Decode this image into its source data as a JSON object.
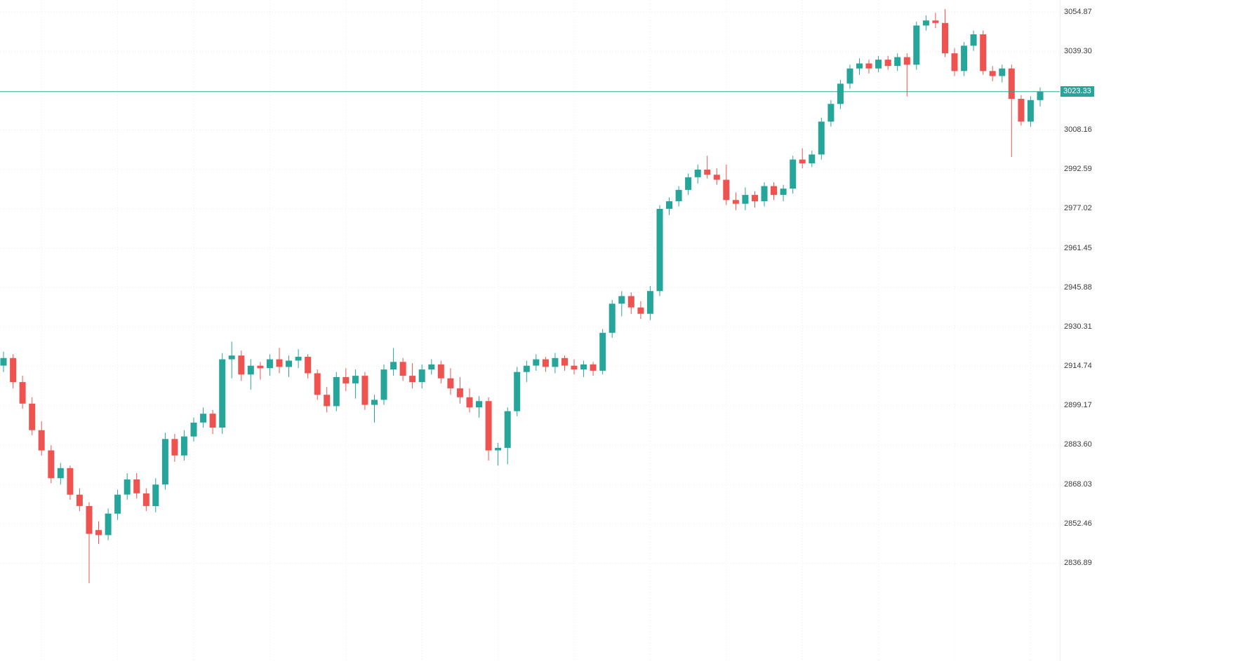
{
  "chart_data": {
    "type": "candlestick",
    "title": "",
    "grid": true,
    "legend": "none",
    "colors": {
      "up": "#26a69a",
      "down": "#ef5350",
      "price_line": "#26a69a",
      "badge_bg": "#26a69a",
      "badge_text": "#ffffff",
      "axis_text": "#3b3b3b",
      "grid_line": "#d9d9d9",
      "background": "#ffffff"
    },
    "price_axis": {
      "side": "right",
      "step": 15.57,
      "labels": [
        "3054.87",
        "3039.30",
        "3008.16",
        "2992.59",
        "2977.02",
        "2961.45",
        "2945.88",
        "2930.31",
        "2914.74",
        "2899.17",
        "2883.60",
        "2868.03",
        "2852.46",
        "2836.89"
      ]
    },
    "current_price": 3023.33,
    "current_price_label": "3023.33",
    "candles": [
      [
        2915.0,
        2920.5,
        2912.5,
        2918.0
      ],
      [
        2918.0,
        2919.5,
        2906.0,
        2908.5
      ],
      [
        2908.5,
        2911.0,
        2898.0,
        2900.0
      ],
      [
        2900.0,
        2902.5,
        2887.5,
        2889.5
      ],
      [
        2889.5,
        2893.0,
        2879.5,
        2881.5
      ],
      [
        2881.5,
        2883.5,
        2868.5,
        2870.5
      ],
      [
        2870.5,
        2876.5,
        2868.0,
        2874.5
      ],
      [
        2874.5,
        2875.5,
        2862.0,
        2864.0
      ],
      [
        2864.0,
        2866.5,
        2857.5,
        2859.5
      ],
      [
        2859.5,
        2861.0,
        2829.0,
        2848.5
      ],
      [
        2850.0,
        2853.5,
        2844.5,
        2848.0
      ],
      [
        2848.0,
        2858.5,
        2846.0,
        2856.5
      ],
      [
        2856.5,
        2866.0,
        2854.0,
        2864.0
      ],
      [
        2864.0,
        2872.5,
        2862.0,
        2870.0
      ],
      [
        2870.0,
        2872.5,
        2862.5,
        2864.5
      ],
      [
        2864.5,
        2866.5,
        2857.5,
        2859.5
      ],
      [
        2859.5,
        2870.5,
        2857.0,
        2868.0
      ],
      [
        2868.0,
        2888.5,
        2866.0,
        2886.0
      ],
      [
        2886.0,
        2888.0,
        2877.0,
        2879.5
      ],
      [
        2879.5,
        2889.5,
        2877.5,
        2887.0
      ],
      [
        2887.0,
        2894.5,
        2885.0,
        2892.5
      ],
      [
        2892.5,
        2898.5,
        2890.5,
        2896.0
      ],
      [
        2896.0,
        2897.5,
        2888.0,
        2890.5
      ],
      [
        2890.5,
        2920.0,
        2888.0,
        2917.5
      ],
      [
        2917.5,
        2924.5,
        2910.0,
        2919.0
      ],
      [
        2919.0,
        2921.0,
        2909.0,
        2911.5
      ],
      [
        2911.5,
        2917.5,
        2905.5,
        2915.0
      ],
      [
        2915.0,
        2916.5,
        2909.5,
        2914.0
      ],
      [
        2914.0,
        2919.5,
        2911.0,
        2917.5
      ],
      [
        2917.5,
        2922.0,
        2912.0,
        2914.5
      ],
      [
        2914.5,
        2919.0,
        2910.5,
        2917.0
      ],
      [
        2917.0,
        2921.5,
        2914.0,
        2918.5
      ],
      [
        2918.5,
        2919.5,
        2910.0,
        2912.0
      ],
      [
        2912.0,
        2913.5,
        2901.5,
        2903.5
      ],
      [
        2903.5,
        2906.5,
        2896.5,
        2899.0
      ],
      [
        2899.0,
        2912.5,
        2897.0,
        2910.5
      ],
      [
        2910.5,
        2914.0,
        2905.0,
        2908.0
      ],
      [
        2908.0,
        2913.5,
        2902.0,
        2911.0
      ],
      [
        2911.0,
        2912.5,
        2897.5,
        2899.5
      ],
      [
        2899.5,
        2903.5,
        2892.5,
        2901.5
      ],
      [
        2901.5,
        2915.5,
        2899.5,
        2913.5
      ],
      [
        2913.5,
        2922.0,
        2911.0,
        2916.5
      ],
      [
        2916.5,
        2918.0,
        2909.0,
        2911.0
      ],
      [
        2911.0,
        2916.0,
        2906.0,
        2908.5
      ],
      [
        2908.5,
        2915.5,
        2906.0,
        2913.5
      ],
      [
        2913.5,
        2917.5,
        2911.5,
        2915.5
      ],
      [
        2915.5,
        2917.0,
        2908.0,
        2910.0
      ],
      [
        2910.0,
        2914.0,
        2903.5,
        2906.0
      ],
      [
        2906.0,
        2910.5,
        2900.0,
        2902.5
      ],
      [
        2902.5,
        2906.0,
        2896.5,
        2898.5
      ],
      [
        2898.5,
        2903.0,
        2894.5,
        2901.0
      ],
      [
        2901.0,
        2902.5,
        2877.5,
        2881.5
      ],
      [
        2881.5,
        2884.5,
        2875.5,
        2882.5
      ],
      [
        2882.5,
        2898.5,
        2876.0,
        2897.0
      ],
      [
        2897.0,
        2914.5,
        2895.0,
        2912.5
      ],
      [
        2912.5,
        2917.0,
        2908.5,
        2915.0
      ],
      [
        2915.0,
        2919.5,
        2913.0,
        2917.5
      ],
      [
        2917.5,
        2918.5,
        2912.5,
        2914.5
      ],
      [
        2914.5,
        2920.0,
        2912.0,
        2918.0
      ],
      [
        2918.0,
        2919.0,
        2913.0,
        2915.0
      ],
      [
        2915.0,
        2917.5,
        2911.5,
        2913.5
      ],
      [
        2913.5,
        2917.0,
        2910.5,
        2915.5
      ],
      [
        2915.5,
        2916.5,
        2911.0,
        2913.0
      ],
      [
        2913.0,
        2929.5,
        2911.5,
        2928.0
      ],
      [
        2928.0,
        2941.0,
        2926.0,
        2939.5
      ],
      [
        2939.5,
        2944.5,
        2934.5,
        2942.5
      ],
      [
        2942.5,
        2944.0,
        2935.5,
        2938.0
      ],
      [
        2938.0,
        2940.5,
        2933.5,
        2935.5
      ],
      [
        2935.5,
        2946.5,
        2933.0,
        2944.5
      ],
      [
        2944.5,
        2978.5,
        2942.5,
        2977.0
      ],
      [
        2977.0,
        2981.5,
        2974.5,
        2980.0
      ],
      [
        2980.0,
        2986.0,
        2978.0,
        2984.5
      ],
      [
        2984.5,
        2991.0,
        2982.5,
        2989.5
      ],
      [
        2989.5,
        2994.5,
        2987.0,
        2992.5
      ],
      [
        2992.5,
        2998.0,
        2989.0,
        2990.5
      ],
      [
        2990.5,
        2993.0,
        2986.5,
        2988.5
      ],
      [
        2988.5,
        2994.5,
        2978.5,
        2980.5
      ],
      [
        2980.5,
        2983.5,
        2976.5,
        2979.0
      ],
      [
        2979.0,
        2985.5,
        2976.5,
        2982.5
      ],
      [
        2982.5,
        2984.0,
        2977.5,
        2980.0
      ],
      [
        2980.0,
        2987.5,
        2978.0,
        2986.0
      ],
      [
        2986.0,
        2987.5,
        2980.5,
        2982.5
      ],
      [
        2982.5,
        2986.5,
        2980.0,
        2985.0
      ],
      [
        2985.0,
        2998.0,
        2983.0,
        2996.5
      ],
      [
        2996.5,
        3001.0,
        2993.0,
        2995.0
      ],
      [
        2995.0,
        3000.0,
        2993.5,
        2998.5
      ],
      [
        2998.5,
        3013.0,
        2996.5,
        3011.5
      ],
      [
        3011.5,
        3020.0,
        3009.5,
        3018.5
      ],
      [
        3018.5,
        3028.0,
        3016.5,
        3026.5
      ],
      [
        3026.5,
        3034.0,
        3024.5,
        3032.5
      ],
      [
        3032.5,
        3036.5,
        3030.0,
        3034.5
      ],
      [
        3034.5,
        3036.0,
        3030.5,
        3032.5
      ],
      [
        3032.5,
        3037.5,
        3031.0,
        3036.0
      ],
      [
        3036.0,
        3037.5,
        3032.0,
        3033.5
      ],
      [
        3033.5,
        3038.5,
        3031.5,
        3037.0
      ],
      [
        3037.0,
        3038.5,
        3021.5,
        3034.0
      ],
      [
        3034.0,
        3051.0,
        3032.0,
        3049.5
      ],
      [
        3049.5,
        3053.5,
        3047.5,
        3051.5
      ],
      [
        3051.5,
        3054.5,
        3048.5,
        3050.5
      ],
      [
        3050.5,
        3056.0,
        3037.0,
        3038.5
      ],
      [
        3038.5,
        3040.5,
        3029.5,
        3031.5
      ],
      [
        3031.5,
        3043.0,
        3029.5,
        3041.5
      ],
      [
        3041.5,
        3047.5,
        3039.5,
        3046.0
      ],
      [
        3046.0,
        3047.5,
        3030.0,
        3031.5
      ],
      [
        3031.5,
        3033.5,
        3027.5,
        3029.5
      ],
      [
        3029.5,
        3034.0,
        3027.0,
        3032.5
      ],
      [
        3032.5,
        3034.0,
        2997.5,
        3020.5
      ],
      [
        3020.5,
        3022.0,
        3010.0,
        3011.5
      ],
      [
        3011.5,
        3021.5,
        3009.5,
        3020.0
      ],
      [
        3020.0,
        3025.0,
        3017.5,
        3023.33
      ]
    ]
  }
}
